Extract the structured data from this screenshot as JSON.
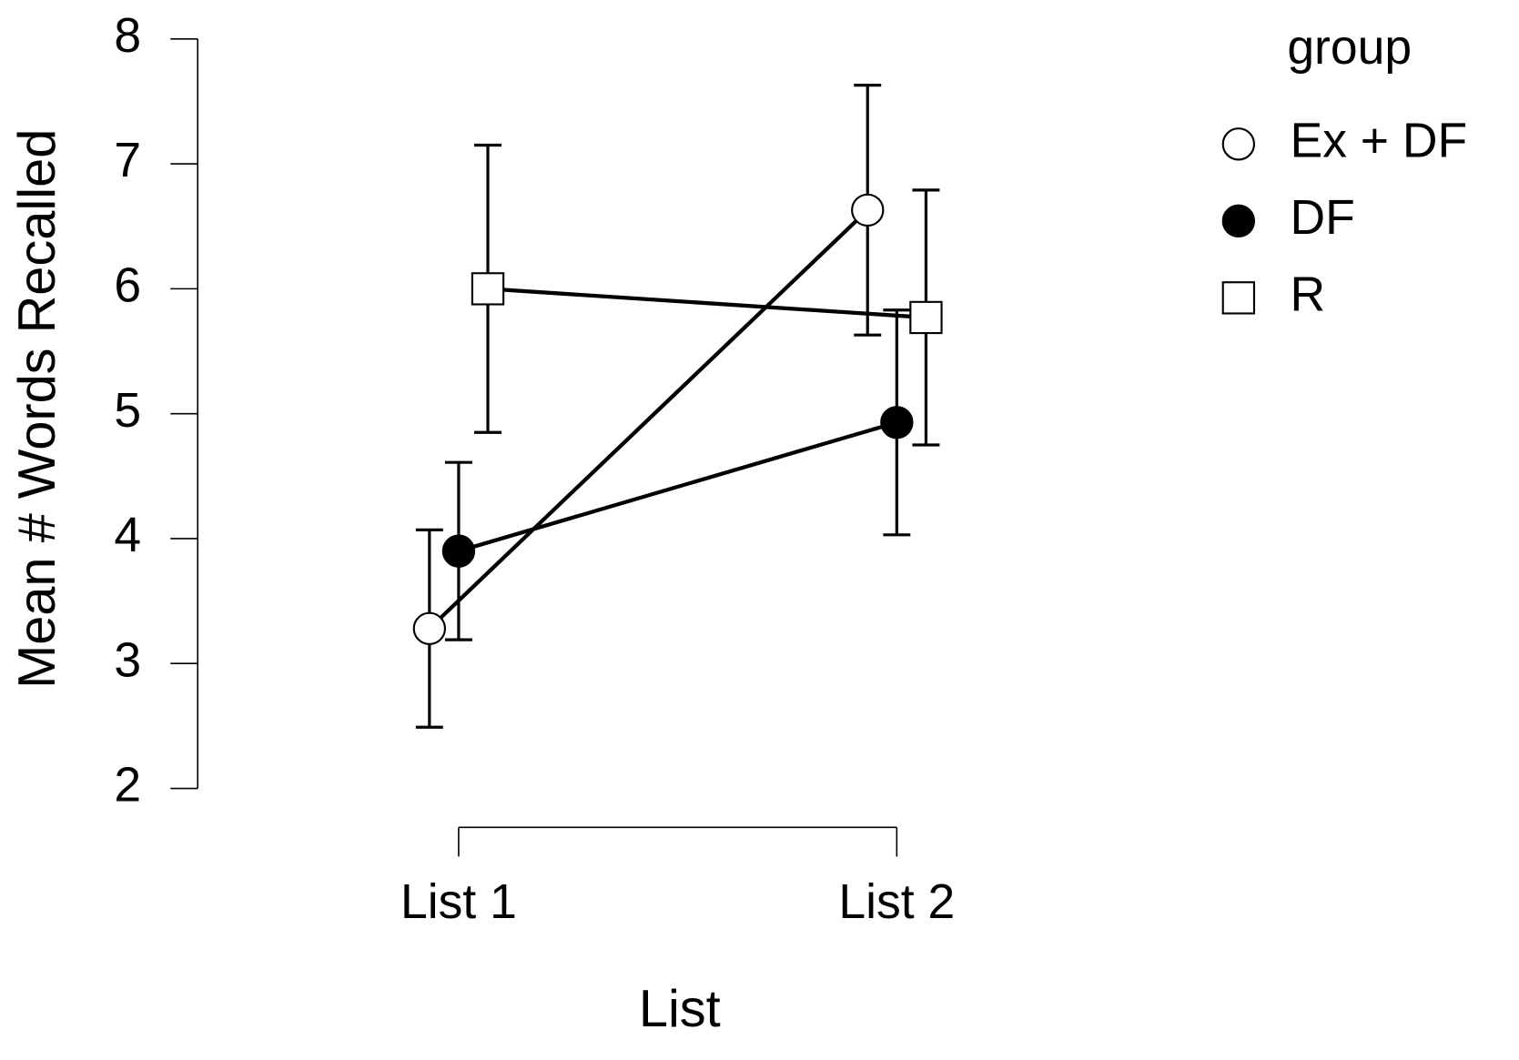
{
  "chart_data": {
    "type": "line",
    "x_label": "List",
    "y_label": "Mean # Words Recalled",
    "categories": [
      "List 1",
      "List 2"
    ],
    "ylim": [
      2,
      8
    ],
    "yticks": [
      2,
      3,
      4,
      5,
      6,
      7,
      8
    ],
    "legend_title": "group",
    "legend_position": "right",
    "series": [
      {
        "name": "Ex + DF",
        "color": "#000000",
        "fill": "#ffffff",
        "marker": "circle",
        "values": [
          3.28,
          6.63
        ],
        "errors": [
          0.79,
          1.0
        ]
      },
      {
        "name": "DF",
        "color": "#000000",
        "fill": "#000000",
        "marker": "circle",
        "values": [
          3.9,
          4.93
        ],
        "errors": [
          0.71,
          0.9
        ]
      },
      {
        "name": "R",
        "color": "#000000",
        "fill": "#ffffff",
        "marker": "square",
        "values": [
          6.0,
          5.77
        ],
        "errors": [
          1.15,
          1.02
        ]
      }
    ]
  }
}
